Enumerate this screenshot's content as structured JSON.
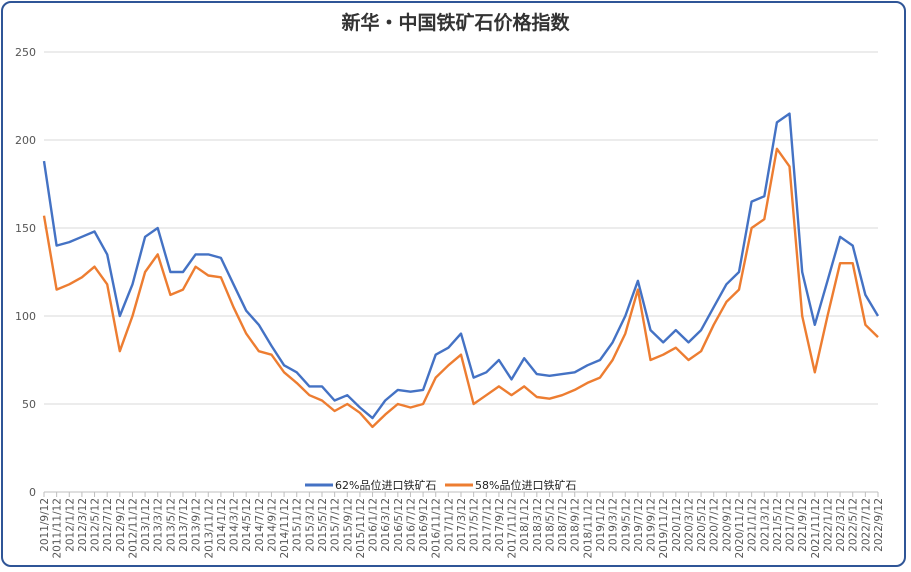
{
  "chart_data": {
    "type": "line",
    "title": "新华・中国铁矿石价格指数",
    "xlabel": "",
    "ylabel": "",
    "ylim": [
      0,
      250
    ],
    "yticks": [
      "0",
      "50",
      "100",
      "150",
      "200",
      "250"
    ],
    "grid": true,
    "legend_position": "bottom",
    "x": [
      "2011/9/12",
      "2011/11/12",
      "2012/1/12",
      "2012/3/12",
      "2012/5/12",
      "2012/7/12",
      "2012/9/12",
      "2012/11/12",
      "2013/1/12",
      "2013/3/12",
      "2013/5/12",
      "2013/7/12",
      "2013/9/12",
      "2013/11/12",
      "2014/1/12",
      "2014/3/12",
      "2014/5/12",
      "2014/7/12",
      "2014/9/12",
      "2014/11/12",
      "2015/1/12",
      "2015/3/12",
      "2015/5/12",
      "2015/7/12",
      "2015/9/12",
      "2015/11/12",
      "2016/1/12",
      "2016/3/12",
      "2016/5/12",
      "2016/7/12",
      "2016/9/12",
      "2016/11/12",
      "2017/1/12",
      "2017/3/12",
      "2017/5/12",
      "2017/7/12",
      "2017/9/12",
      "2017/11/12",
      "2018/1/12",
      "2018/3/12",
      "2018/5/12",
      "2018/7/12",
      "2018/9/12",
      "2018/11/12",
      "2019/1/12",
      "2019/3/12",
      "2019/5/12",
      "2019/7/12",
      "2019/9/12",
      "2019/11/12",
      "2020/1/12",
      "2020/3/12",
      "2020/5/12",
      "2020/7/12",
      "2020/9/12",
      "2020/11/12",
      "2021/1/12",
      "2021/3/12",
      "2021/5/12",
      "2021/7/12",
      "2021/9/12",
      "2021/11/12",
      "2022/1/12",
      "2022/3/12",
      "2022/5/12",
      "2022/7/12",
      "2022/9/12"
    ],
    "series": [
      {
        "name": "62%品位进口铁矿石",
        "color": "#4472c4",
        "values": [
          188,
          140,
          142,
          145,
          148,
          135,
          100,
          118,
          145,
          150,
          125,
          125,
          135,
          135,
          133,
          118,
          103,
          95,
          83,
          72,
          68,
          60,
          60,
          52,
          55,
          48,
          42,
          52,
          58,
          57,
          58,
          78,
          82,
          90,
          65,
          68,
          75,
          64,
          76,
          67,
          66,
          67,
          68,
          72,
          75,
          85,
          100,
          120,
          92,
          85,
          92,
          85,
          92,
          105,
          118,
          125,
          165,
          168,
          210,
          215,
          125,
          95,
          120,
          145,
          140,
          112,
          100
        ]
      },
      {
        "name": "58%品位进口铁矿石",
        "color": "#ed7d31",
        "values": [
          157,
          115,
          118,
          122,
          128,
          118,
          80,
          100,
          125,
          135,
          112,
          115,
          128,
          123,
          122,
          105,
          90,
          80,
          78,
          68,
          62,
          55,
          52,
          46,
          50,
          45,
          37,
          44,
          50,
          48,
          50,
          65,
          72,
          78,
          50,
          55,
          60,
          55,
          60,
          54,
          53,
          55,
          58,
          62,
          65,
          75,
          90,
          115,
          75,
          78,
          82,
          75,
          80,
          95,
          108,
          115,
          150,
          155,
          195,
          185,
          100,
          68,
          100,
          130,
          130,
          95,
          88
        ]
      }
    ]
  }
}
